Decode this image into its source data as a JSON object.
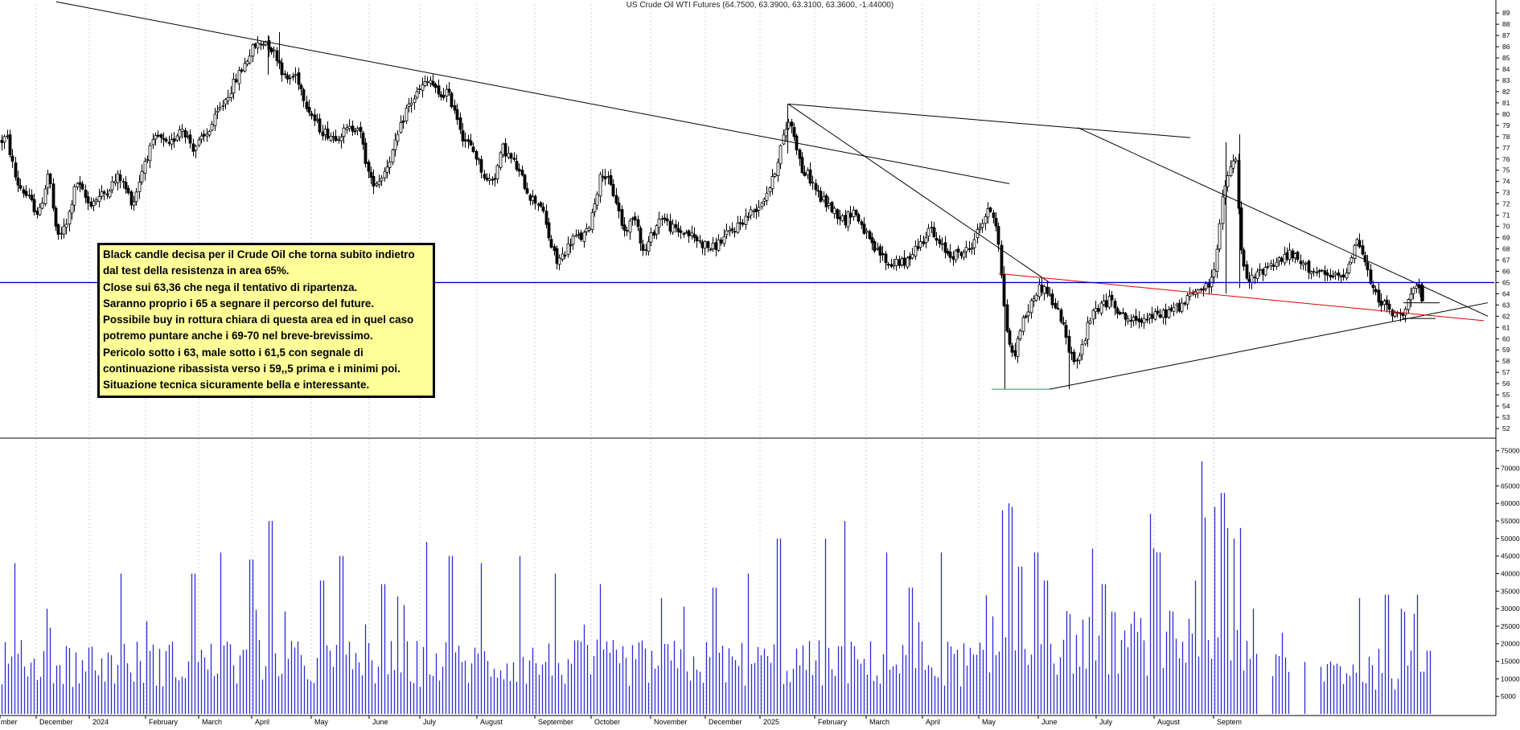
{
  "header": {
    "title": "US Crude Oil WTI Futures  (64.7500, 63.3900, 63.3100, 63.3600, -1.44000)"
  },
  "annotation": {
    "lines": [
      "Black candle decisa per il Crude Oil che torna subito indietro",
      "dal test della resistenza in area 65%.",
      "Close sui 63,36 che nega il tentativo di ripartenza.",
      "Saranno proprio i 65 a segnare il percorso del future.",
      "Possibile buy in rottura chiara di questa area ed in quel caso",
      "potremo puntare anche i 69-70 nel breve-brevissimo.",
      "Pericolo sotto i 63, male sotto i 61,5 con segnale di",
      "continuazione ribassista verso i 59,,5 prima e i minimi poi.",
      "Situazione tecnica sicuramente bella e interessante."
    ]
  },
  "colors": {
    "candle_up": "#ffffff",
    "candle_down": "#000000",
    "volume_bar": "#2b2bd6",
    "resistance_line": "#0000cc",
    "red_trendline": "#e00000",
    "green_support": "#2e9e4f",
    "trendline": "#000000"
  },
  "chart_data": {
    "type": "candlestick",
    "title": "US Crude Oil WTI Futures  (64.7500, 63.3900, 63.3100, 63.3600, -1.44000)",
    "x_axis_labels": [
      "mber",
      "December",
      "2024",
      "February",
      "March",
      "April",
      "May",
      "June",
      "July",
      "August",
      "September",
      "October",
      "November",
      "December",
      "2025",
      "February",
      "March",
      "April",
      "May",
      "June",
      "July",
      "August",
      "Septem"
    ],
    "price": {
      "ylim": [
        51.5,
        89.8
      ],
      "ticks": [
        52,
        53,
        54,
        55,
        56,
        57,
        58,
        59,
        60,
        61,
        62,
        63,
        64,
        65,
        66,
        67,
        68,
        69,
        70,
        71,
        72,
        73,
        74,
        75,
        76,
        77,
        78,
        79,
        80,
        81,
        82,
        83,
        84,
        85,
        86,
        87,
        88,
        89
      ],
      "series_anchors": [
        [
          0,
          77.5
        ],
        [
          8,
          78
        ],
        [
          20,
          74
        ],
        [
          35,
          72.5
        ],
        [
          48,
          71
        ],
        [
          60,
          75
        ],
        [
          70,
          69
        ],
        [
          82,
          70
        ],
        [
          95,
          74
        ],
        [
          110,
          72
        ],
        [
          130,
          73
        ],
        [
          148,
          74.5
        ],
        [
          165,
          72
        ],
        [
          180,
          76
        ],
        [
          195,
          78
        ],
        [
          210,
          77
        ],
        [
          225,
          79
        ],
        [
          240,
          77
        ],
        [
          255,
          78
        ],
        [
          270,
          80
        ],
        [
          285,
          82
        ],
        [
          300,
          84
        ],
        [
          315,
          86
        ],
        [
          330,
          86.5
        ],
        [
          345,
          85
        ],
        [
          355,
          83
        ],
        [
          368,
          83.5
        ],
        [
          380,
          81
        ],
        [
          390,
          79.5
        ],
        [
          400,
          78.5
        ],
        [
          415,
          78
        ],
        [
          430,
          78.5
        ],
        [
          445,
          79
        ],
        [
          460,
          74
        ],
        [
          470,
          74
        ],
        [
          478,
          75
        ],
        [
          490,
          77
        ],
        [
          505,
          80.5
        ],
        [
          515,
          81.5
        ],
        [
          525,
          82.5
        ],
        [
          535,
          83
        ],
        [
          545,
          81.5
        ],
        [
          555,
          82
        ],
        [
          565,
          80.5
        ],
        [
          575,
          78
        ],
        [
          590,
          76.5
        ],
        [
          605,
          74
        ],
        [
          615,
          74.5
        ],
        [
          625,
          77
        ],
        [
          640,
          75.5
        ],
        [
          650,
          74
        ],
        [
          660,
          72.5
        ],
        [
          672,
          72
        ],
        [
          684,
          68.5
        ],
        [
          692,
          66.8
        ],
        [
          700,
          67.5
        ],
        [
          712,
          69
        ],
        [
          722,
          69
        ],
        [
          730,
          69.5
        ],
        [
          740,
          72.5
        ],
        [
          748,
          75
        ],
        [
          756,
          74
        ],
        [
          765,
          72.5
        ],
        [
          775,
          69.5
        ],
        [
          790,
          71
        ],
        [
          800,
          67.5
        ],
        [
          812,
          69.5
        ],
        [
          822,
          71
        ],
        [
          832,
          70
        ],
        [
          842,
          69.5
        ],
        [
          852,
          69.5
        ],
        [
          862,
          69
        ],
        [
          872,
          68.5
        ],
        [
          885,
          68
        ],
        [
          900,
          69
        ],
        [
          915,
          70
        ],
        [
          930,
          71
        ],
        [
          945,
          72
        ],
        [
          960,
          74
        ],
        [
          970,
          77
        ],
        [
          980,
          79.5
        ],
        [
          988,
          78
        ],
        [
          996,
          75
        ],
        [
          1005,
          74.5
        ],
        [
          1020,
          72.5
        ],
        [
          1035,
          71.5
        ],
        [
          1050,
          70.5
        ],
        [
          1060,
          71.5
        ],
        [
          1072,
          70
        ],
        [
          1085,
          68
        ],
        [
          1095,
          67.5
        ],
        [
          1105,
          66.5
        ],
        [
          1115,
          67
        ],
        [
          1125,
          66.5
        ],
        [
          1135,
          68
        ],
        [
          1145,
          68.5
        ],
        [
          1155,
          70
        ],
        [
          1165,
          68.5
        ],
        [
          1180,
          67.5
        ],
        [
          1192,
          67.5
        ],
        [
          1205,
          68
        ],
        [
          1215,
          69.5
        ],
        [
          1225,
          71
        ],
        [
          1232,
          71.5
        ],
        [
          1240,
          70
        ],
        [
          1246,
          64.5
        ],
        [
          1252,
          60.5
        ],
        [
          1260,
          58
        ],
        [
          1268,
          61
        ],
        [
          1278,
          62.5
        ],
        [
          1290,
          64.5
        ],
        [
          1300,
          64.5
        ],
        [
          1310,
          63
        ],
        [
          1318,
          62
        ],
        [
          1325,
          60
        ],
        [
          1332,
          58.5
        ],
        [
          1340,
          58
        ],
        [
          1346,
          59.5
        ],
        [
          1352,
          61
        ],
        [
          1360,
          62.5
        ],
        [
          1370,
          63
        ],
        [
          1382,
          63.5
        ],
        [
          1395,
          62
        ],
        [
          1410,
          61.5
        ],
        [
          1425,
          62
        ],
        [
          1440,
          62
        ],
        [
          1455,
          62.5
        ],
        [
          1470,
          63
        ],
        [
          1482,
          64
        ],
        [
          1492,
          64.5
        ],
        [
          1500,
          64.5
        ],
        [
          1508,
          65.5
        ],
        [
          1514,
          69
        ],
        [
          1520,
          72.5
        ],
        [
          1526,
          74.5
        ],
        [
          1532,
          75.5
        ],
        [
          1537,
          76
        ],
        [
          1542,
          68
        ],
        [
          1550,
          65
        ],
        [
          1560,
          65.5
        ],
        [
          1575,
          66.5
        ],
        [
          1590,
          67
        ],
        [
          1605,
          67.5
        ],
        [
          1620,
          66.5
        ],
        [
          1635,
          66
        ],
        [
          1648,
          65.5
        ],
        [
          1660,
          65.5
        ],
        [
          1670,
          65.5
        ],
        [
          1680,
          67.5
        ],
        [
          1688,
          69
        ],
        [
          1694,
          67.5
        ],
        [
          1700,
          66
        ],
        [
          1708,
          64
        ],
        [
          1716,
          63.5
        ],
        [
          1726,
          62.5
        ],
        [
          1735,
          62
        ],
        [
          1744,
          62.5
        ],
        [
          1752,
          63.5
        ],
        [
          1758,
          64.5
        ],
        [
          1763,
          64.3
        ],
        [
          1768,
          63.4
        ]
      ]
    },
    "volume": {
      "ylim": [
        0,
        77000
      ],
      "ticks": [
        5000,
        10000,
        15000,
        20000,
        25000,
        30000,
        35000,
        40000,
        45000,
        50000,
        55000,
        60000,
        65000,
        70000,
        75000
      ],
      "spikes": [
        [
          18,
          43000
        ],
        [
          58,
          30000
        ],
        [
          150,
          40000
        ],
        [
          240,
          40000
        ],
        [
          274,
          46000
        ],
        [
          312,
          44000
        ],
        [
          336,
          55000
        ],
        [
          400,
          38000
        ],
        [
          424,
          45000
        ],
        [
          476,
          37000
        ],
        [
          530,
          49000
        ],
        [
          560,
          45000
        ],
        [
          598,
          43000
        ],
        [
          645,
          45000
        ],
        [
          689,
          40000
        ],
        [
          746,
          37000
        ],
        [
          822,
          33000
        ],
        [
          888,
          36000
        ],
        [
          930,
          40000
        ],
        [
          968,
          50000
        ],
        [
          1026,
          50000
        ],
        [
          1049,
          55000
        ],
        [
          1102,
          46000
        ],
        [
          1132,
          36000
        ],
        [
          1169,
          46000
        ],
        [
          1245,
          58000
        ],
        [
          1253,
          60000
        ],
        [
          1258,
          59000
        ],
        [
          1268,
          42000
        ],
        [
          1288,
          46000
        ],
        [
          1300,
          38000
        ],
        [
          1372,
          37000
        ],
        [
          1431,
          57000
        ],
        [
          1440,
          46000
        ],
        [
          1487,
          38000
        ],
        [
          1493,
          72000
        ],
        [
          1498,
          56000
        ],
        [
          1510,
          59000
        ],
        [
          1520,
          63000
        ],
        [
          1527,
          53000
        ],
        [
          1533,
          50000
        ],
        [
          1541,
          53000
        ],
        [
          1690,
          33000
        ],
        [
          1724,
          34000
        ],
        [
          1743,
          30000
        ],
        [
          1762,
          34000
        ]
      ]
    },
    "trendlines": [
      {
        "from": [
          70,
          90.0
        ],
        "to": [
          1255,
          73.8
        ],
        "color": "black"
      },
      {
        "from": [
          980,
          80.9
        ],
        "to": [
          1305,
          65.0
        ],
        "color": "black"
      },
      {
        "from": [
          980,
          80.9
        ],
        "to": [
          1480,
          77.9
        ],
        "color": "black"
      },
      {
        "from": [
          1340,
          78.8
        ],
        "to": [
          1850,
          62.0
        ],
        "color": "black"
      },
      {
        "from": [
          1305,
          55.5
        ],
        "to": [
          1850,
          63.2
        ],
        "color": "black"
      },
      {
        "from": [
          1242,
          65.8
        ],
        "to": [
          1845,
          61.6
        ],
        "color": "red"
      },
      {
        "from": [
          1233,
          55.5
        ],
        "to": [
          1305,
          55.5
        ],
        "color": "green"
      },
      {
        "from": [
          1745,
          61.8
        ],
        "to": [
          1785,
          61.8
        ],
        "color": "black"
      },
      {
        "from": [
          1745,
          63.2
        ],
        "to": [
          1790,
          63.2
        ],
        "color": "black"
      },
      {
        "from": [
          0,
          65.0
        ],
        "to": [
          1858,
          65.0
        ],
        "color": "blue"
      }
    ]
  }
}
